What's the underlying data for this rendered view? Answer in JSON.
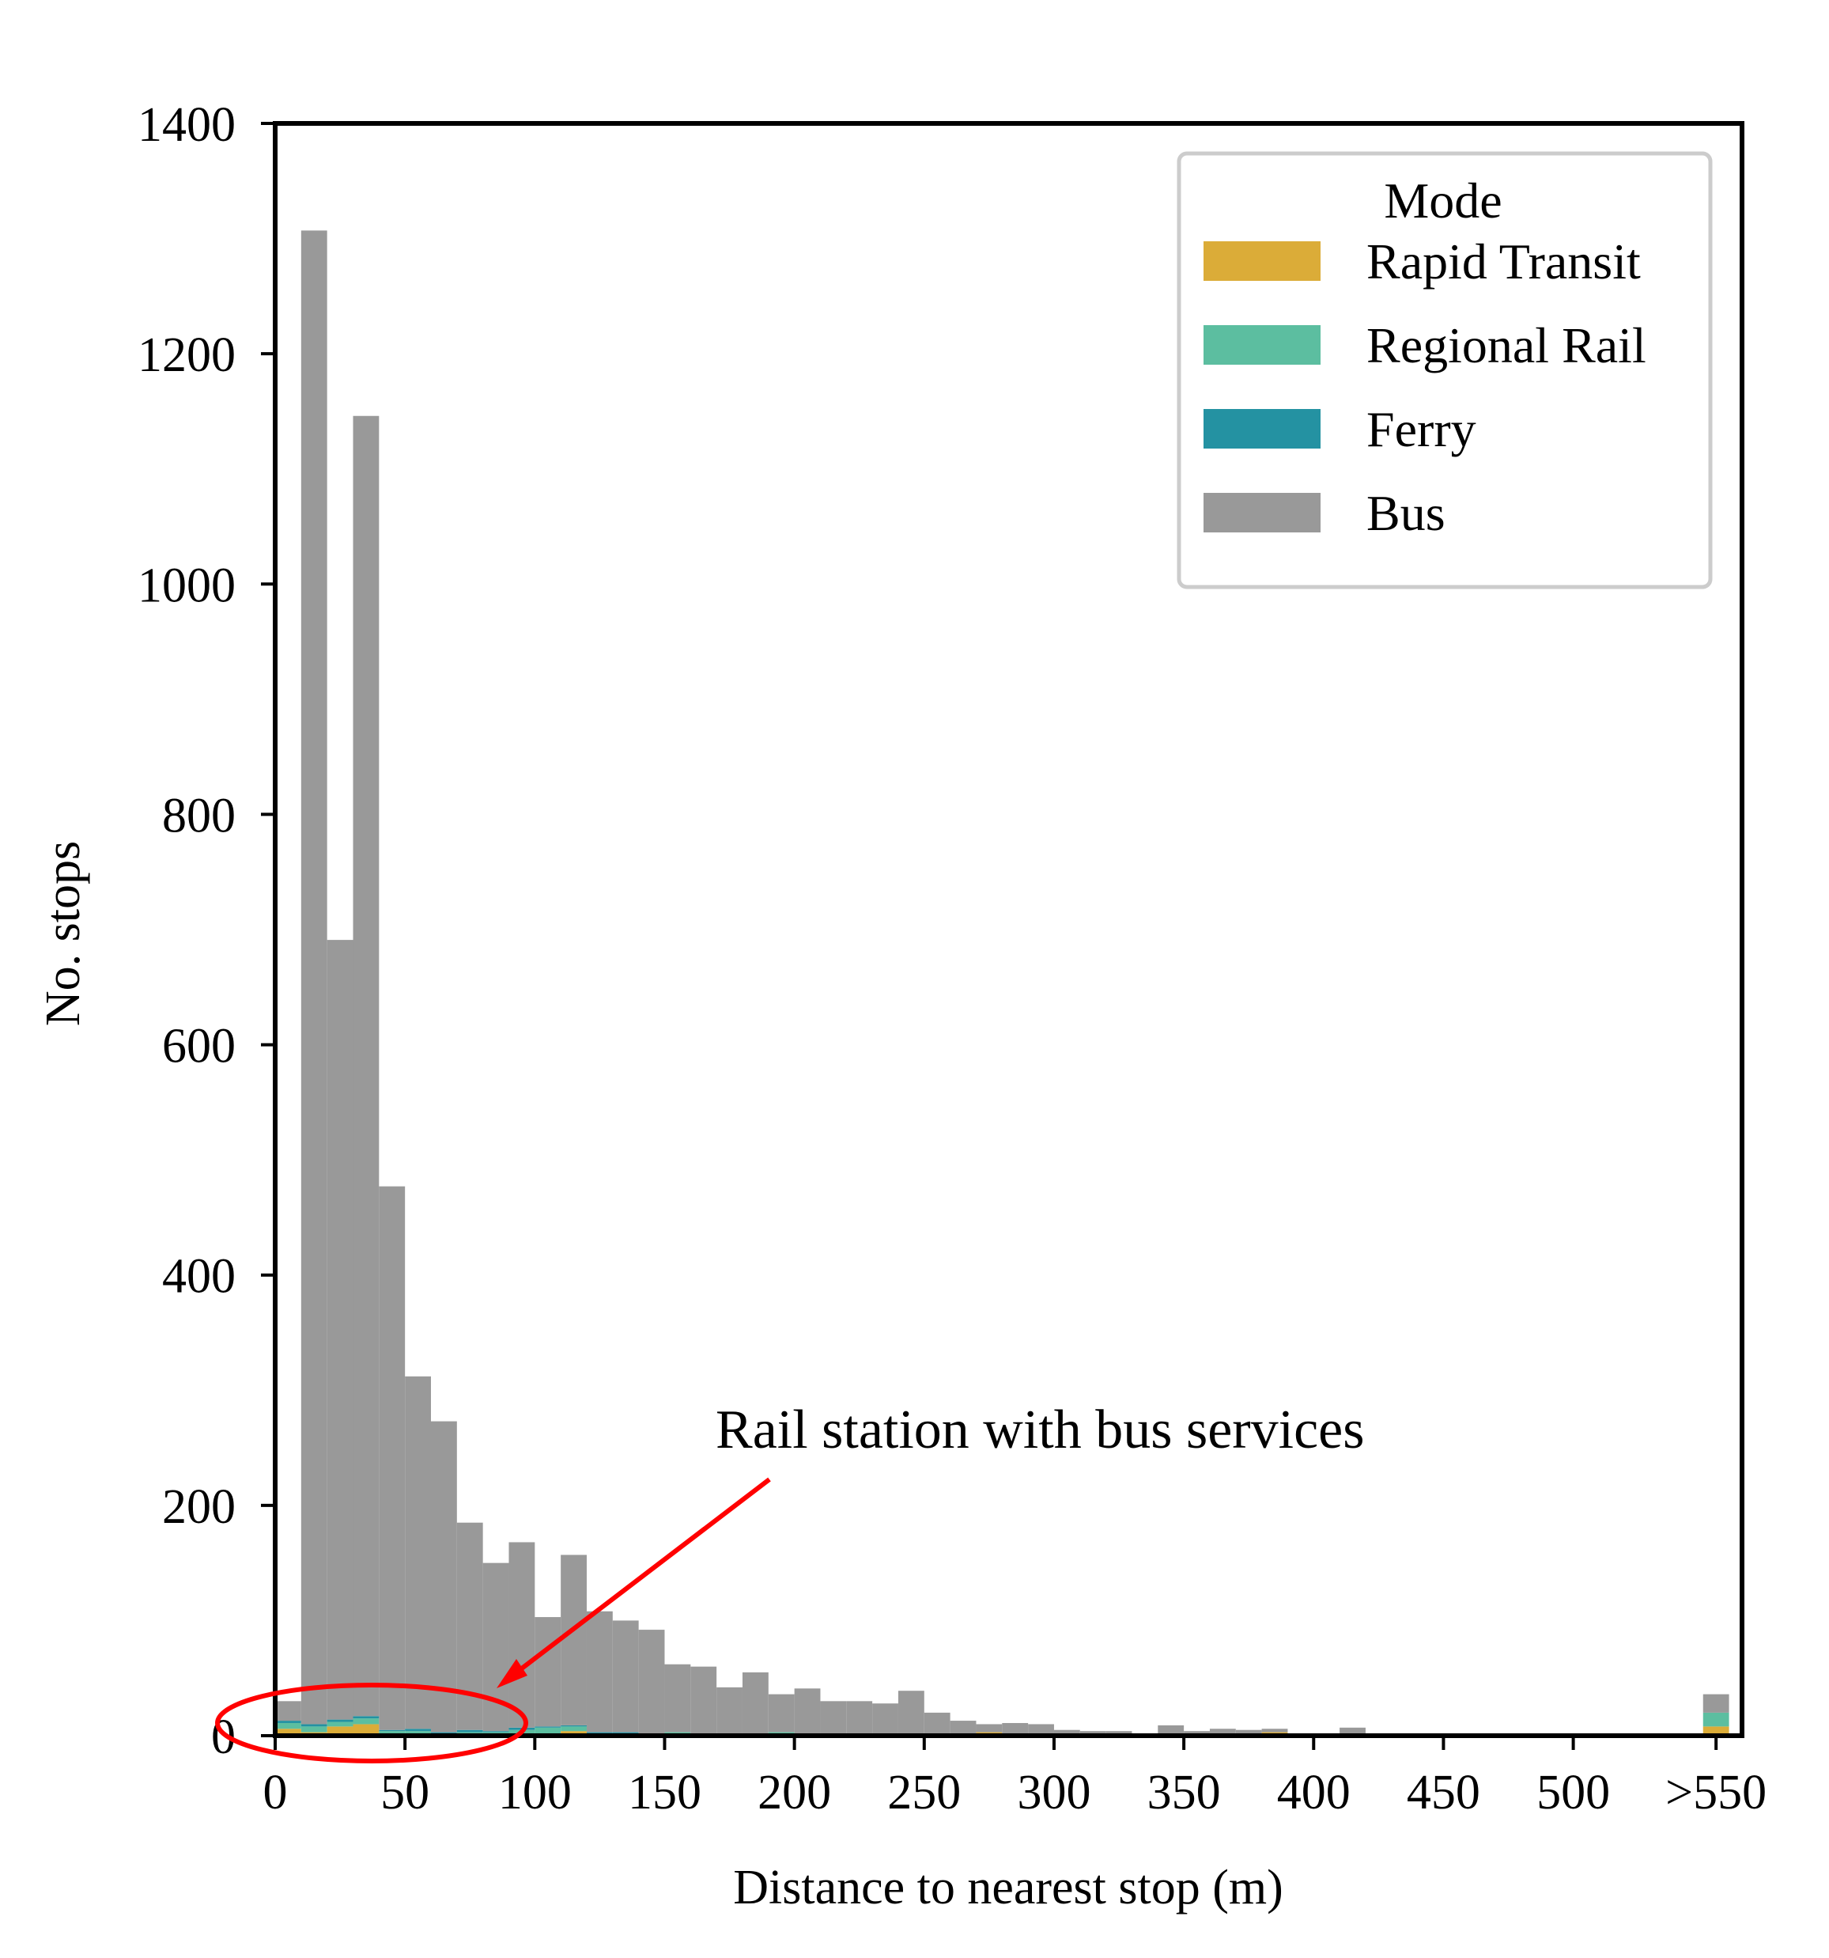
{
  "chart_data": {
    "type": "bar",
    "stacked": true,
    "xlabel": "Distance to nearest stop (m)",
    "ylabel": "No. stops",
    "xlim": [
      0,
      565
    ],
    "ylim": [
      0,
      1400
    ],
    "x_ticks": [
      {
        "value": 0,
        "label": "0"
      },
      {
        "value": 50,
        "label": "50"
      },
      {
        "value": 100,
        "label": "100"
      },
      {
        "value": 150,
        "label": "150"
      },
      {
        "value": 200,
        "label": "200"
      },
      {
        "value": 250,
        "label": "250"
      },
      {
        "value": 300,
        "label": "300"
      },
      {
        "value": 350,
        "label": "350"
      },
      {
        "value": 400,
        "label": "400"
      },
      {
        "value": 450,
        "label": "450"
      },
      {
        "value": 500,
        "label": "500"
      },
      {
        "value": 555,
        "label": ">550"
      }
    ],
    "y_ticks": [
      {
        "value": 0,
        "label": "0"
      },
      {
        "value": 200,
        "label": "200"
      },
      {
        "value": 400,
        "label": "400"
      },
      {
        "value": 600,
        "label": "600"
      },
      {
        "value": 800,
        "label": "800"
      },
      {
        "value": 1000,
        "label": "1000"
      },
      {
        "value": 1200,
        "label": "1200"
      },
      {
        "value": 1400,
        "label": "1400"
      }
    ],
    "grid": false,
    "legend": {
      "title": "Mode",
      "position": "top-right"
    },
    "bin_width": 10,
    "bin_starts": [
      0,
      10,
      20,
      30,
      40,
      50,
      60,
      70,
      80,
      90,
      100,
      110,
      120,
      130,
      140,
      150,
      160,
      170,
      180,
      190,
      200,
      210,
      220,
      230,
      240,
      250,
      260,
      270,
      280,
      290,
      300,
      310,
      320,
      330,
      340,
      350,
      360,
      370,
      380,
      390,
      400,
      410,
      420,
      430,
      440,
      450,
      460,
      470,
      480,
      490,
      500,
      510,
      520,
      530,
      540,
      550
    ],
    "series": [
      {
        "name": "Rapid Transit",
        "color": "#dbac38",
        "values": [
          6,
          3,
          8,
          10,
          2,
          2,
          0,
          0,
          0,
          2,
          2,
          4,
          0,
          0,
          0,
          2,
          0,
          0,
          0,
          2,
          0,
          0,
          0,
          0,
          0,
          0,
          0,
          3,
          0,
          0,
          0,
          0,
          0,
          0,
          0,
          0,
          0,
          2,
          3,
          0,
          0,
          0,
          0,
          0,
          0,
          0,
          0,
          0,
          0,
          0,
          0,
          0,
          0,
          0,
          0,
          8
        ]
      },
      {
        "name": "Regional Rail",
        "color": "#5cbea0",
        "values": [
          5,
          5,
          4,
          5,
          2,
          2,
          2,
          3,
          3,
          3,
          5,
          4,
          2,
          2,
          2,
          1,
          0,
          0,
          0,
          1,
          0,
          0,
          0,
          0,
          0,
          0,
          0,
          0,
          1,
          0,
          0,
          0,
          0,
          0,
          0,
          0,
          0,
          0,
          0,
          0,
          0,
          0,
          0,
          0,
          0,
          0,
          0,
          0,
          0,
          0,
          0,
          0,
          0,
          0,
          0,
          12
        ]
      },
      {
        "name": "Ferry",
        "color": "#2492a2",
        "values": [
          2,
          2,
          2,
          2,
          1,
          2,
          1,
          2,
          1,
          2,
          1,
          1,
          1,
          1,
          0,
          0,
          0,
          0,
          0,
          0,
          0,
          0,
          0,
          0,
          0,
          0,
          0,
          0,
          0,
          0,
          0,
          0,
          0,
          0,
          0,
          0,
          0,
          0,
          0,
          0,
          0,
          0,
          0,
          0,
          0,
          0,
          0,
          0,
          0,
          0,
          0,
          0,
          0,
          0,
          0,
          0
        ]
      },
      {
        "name": "Bus",
        "color": "#999999",
        "values": [
          17,
          1297,
          677,
          1129,
          472,
          306,
          270,
          180,
          146,
          161,
          95,
          148,
          105,
          97,
          90,
          59,
          60,
          42,
          55,
          33,
          41,
          30,
          30,
          28,
          39,
          20,
          13,
          7,
          10,
          10,
          5,
          4,
          4,
          0,
          9,
          4,
          6,
          3,
          3,
          0,
          0,
          7,
          0,
          0,
          2,
          0,
          0,
          0,
          1,
          2,
          0,
          0,
          0,
          1,
          0,
          16
        ]
      }
    ],
    "annotation": {
      "text": "Rail station with bus services",
      "arrow_color": "#ff0000"
    }
  }
}
